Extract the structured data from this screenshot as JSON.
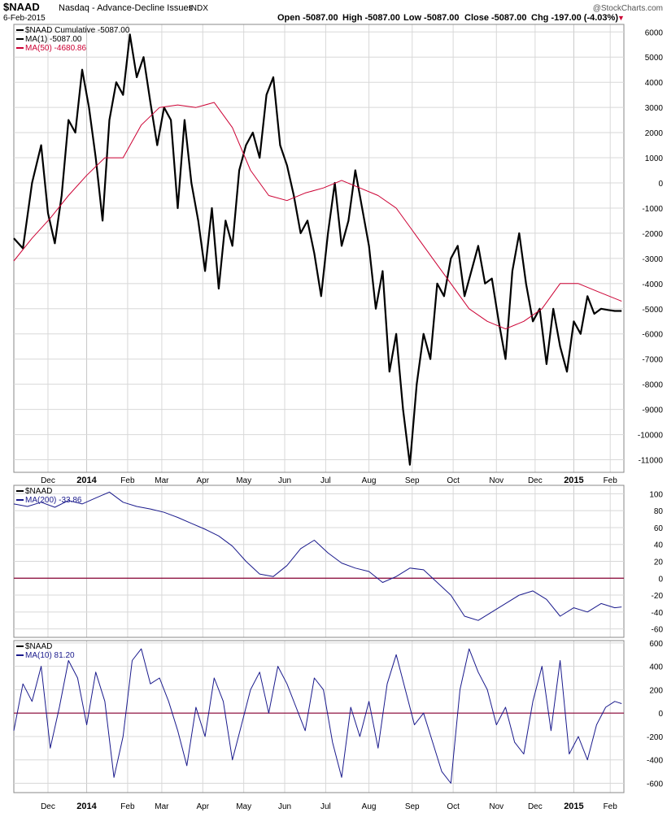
{
  "header": {
    "symbol": "$NAAD",
    "name": "Nasdaq - Advance-Decline Issues",
    "exchange": "INDX",
    "date": "6-Feb-2015",
    "open": "Open -5087.00",
    "high": "High -5087.00",
    "low": "Low -5087.00",
    "close": "Close -5087.00",
    "chg": "Chg -197.00 (-4.03%)",
    "chg_arrow": "▼",
    "watermark": "@StockCharts.com"
  },
  "colors": {
    "price": "#000000",
    "ma50": "#cc0033",
    "indicator": "#1a1a8c",
    "zero_line": "#880033",
    "grid": "#d8d8d8",
    "down": "#cc0033"
  },
  "x_axis": {
    "labels": [
      {
        "text": "Dec",
        "t": 0.075,
        "bold": false
      },
      {
        "text": "2014",
        "t": 0.16,
        "bold": true
      },
      {
        "text": "Feb",
        "t": 0.25,
        "bold": false
      },
      {
        "text": "Mar",
        "t": 0.325,
        "bold": false
      },
      {
        "text": "Apr",
        "t": 0.415,
        "bold": false
      },
      {
        "text": "May",
        "t": 0.505,
        "bold": false
      },
      {
        "text": "Jun",
        "t": 0.595,
        "bold": false
      },
      {
        "text": "Jul",
        "t": 0.685,
        "bold": false
      },
      {
        "text": "Aug",
        "t": 0.78,
        "bold": false
      },
      {
        "text": "Sep",
        "t": 0.875,
        "bold": false
      },
      {
        "text": "Oct",
        "t": 0.965,
        "bold": false
      },
      {
        "text": "Nov",
        "t": 1.06,
        "bold": false
      },
      {
        "text": "Dec",
        "t": 1.145,
        "bold": false
      },
      {
        "text": "2015",
        "t": 1.23,
        "bold": true
      },
      {
        "text": "Feb",
        "t": 1.31,
        "bold": false
      }
    ]
  },
  "chart_data": [
    {
      "type": "line",
      "panel": "main",
      "legend": [
        {
          "label": "$NAAD Cumulative -5087.00",
          "color": "#000000"
        },
        {
          "label": "MA(1) -5087.00",
          "color": "#000000"
        },
        {
          "label": "MA(50) -4680.86",
          "color": "#cc0033"
        }
      ],
      "y_ticks": [
        6000,
        5000,
        4000,
        3000,
        2000,
        1000,
        0,
        -1000,
        -2000,
        -3000,
        -4000,
        -5000,
        -6000,
        -7000,
        -8000,
        -9000,
        -10000,
        -11000
      ],
      "ylim": [
        -11500,
        6300
      ],
      "series": [
        {
          "name": "$NAAD Cumulative",
          "color": "#000000",
          "x": [
            0,
            0.02,
            0.04,
            0.06,
            0.075,
            0.09,
            0.105,
            0.12,
            0.135,
            0.15,
            0.165,
            0.18,
            0.195,
            0.21,
            0.225,
            0.24,
            0.255,
            0.27,
            0.285,
            0.3,
            0.315,
            0.33,
            0.345,
            0.36,
            0.375,
            0.39,
            0.405,
            0.42,
            0.435,
            0.45,
            0.465,
            0.48,
            0.495,
            0.51,
            0.525,
            0.54,
            0.555,
            0.57,
            0.585,
            0.6,
            0.615,
            0.63,
            0.645,
            0.66,
            0.675,
            0.69,
            0.705,
            0.72,
            0.735,
            0.75,
            0.765,
            0.78,
            0.795,
            0.81,
            0.825,
            0.84,
            0.855,
            0.87,
            0.885,
            0.9,
            0.915,
            0.93,
            0.945,
            0.96,
            0.975,
            0.99,
            1.005,
            1.02,
            1.035,
            1.05,
            1.065,
            1.08,
            1.095,
            1.11,
            1.125,
            1.14,
            1.155,
            1.17,
            1.185,
            1.2,
            1.215,
            1.23,
            1.245,
            1.26,
            1.275,
            1.29,
            1.305,
            1.32,
            1.335
          ],
          "values": [
            -2200,
            -2600,
            0,
            1500,
            -1200,
            -2400,
            -500,
            2500,
            2000,
            4500,
            3000,
            1000,
            -1500,
            2500,
            4000,
            3500,
            5900,
            4200,
            5000,
            3200,
            1500,
            3000,
            2500,
            -1000,
            2500,
            0,
            -1500,
            -3500,
            -1000,
            -4200,
            -1500,
            -2500,
            500,
            1500,
            2000,
            1000,
            3500,
            4200,
            1500,
            700,
            -500,
            -2000,
            -1500,
            -2800,
            -4500,
            -2000,
            0,
            -2500,
            -1500,
            500,
            -1000,
            -2500,
            -5000,
            -3500,
            -7500,
            -6000,
            -9000,
            -11200,
            -8000,
            -6000,
            -7000,
            -4000,
            -4500,
            -3000,
            -2500,
            -4500,
            -3500,
            -2500,
            -4000,
            -3800,
            -5500,
            -7000,
            -3500,
            -2000,
            -4000,
            -5500,
            -5000,
            -7200,
            -5000,
            -6500,
            -7500,
            -5500,
            -6000,
            -4500,
            -5200,
            -5000,
            -5050,
            -5087,
            -5087
          ]
        },
        {
          "name": "MA(50)",
          "color": "#cc0033",
          "x": [
            0,
            0.04,
            0.08,
            0.12,
            0.16,
            0.2,
            0.24,
            0.28,
            0.32,
            0.36,
            0.4,
            0.44,
            0.48,
            0.52,
            0.56,
            0.6,
            0.64,
            0.68,
            0.72,
            0.76,
            0.8,
            0.84,
            0.88,
            0.92,
            0.96,
            1.0,
            1.04,
            1.08,
            1.12,
            1.16,
            1.2,
            1.24,
            1.28,
            1.335
          ],
          "values": [
            -3100,
            -2200,
            -1400,
            -500,
            300,
            1000,
            1000,
            2300,
            3000,
            3100,
            3000,
            3200,
            2200,
            500,
            -500,
            -700,
            -400,
            -200,
            100,
            -200,
            -500,
            -1000,
            -2000,
            -3000,
            -4000,
            -5000,
            -5500,
            -5800,
            -5500,
            -5000,
            -4000,
            -4000,
            -4300,
            -4700
          ]
        }
      ]
    },
    {
      "type": "line",
      "panel": "ma200",
      "legend": [
        {
          "label": "$NAAD",
          "color": "#000000"
        },
        {
          "label": "MA(200) -33.86",
          "color": "#1a1a8c"
        }
      ],
      "y_ticks": [
        100,
        80,
        60,
        40,
        20,
        0,
        -20,
        -40,
        -60
      ],
      "ylim": [
        -70,
        110
      ],
      "zero_line": 0,
      "series": [
        {
          "name": "MA(200)",
          "color": "#1a1a8c",
          "x": [
            0,
            0.03,
            0.06,
            0.09,
            0.12,
            0.15,
            0.18,
            0.21,
            0.24,
            0.27,
            0.3,
            0.33,
            0.36,
            0.39,
            0.42,
            0.45,
            0.48,
            0.51,
            0.54,
            0.57,
            0.6,
            0.63,
            0.66,
            0.69,
            0.72,
            0.75,
            0.78,
            0.81,
            0.84,
            0.87,
            0.9,
            0.93,
            0.96,
            0.99,
            1.02,
            1.05,
            1.08,
            1.11,
            1.14,
            1.17,
            1.2,
            1.23,
            1.26,
            1.29,
            1.32,
            1.335
          ],
          "values": [
            88,
            85,
            90,
            84,
            92,
            88,
            95,
            102,
            90,
            85,
            82,
            78,
            72,
            65,
            58,
            50,
            38,
            20,
            5,
            2,
            15,
            35,
            45,
            30,
            18,
            12,
            8,
            -5,
            2,
            12,
            10,
            -5,
            -20,
            -45,
            -50,
            -40,
            -30,
            -20,
            -15,
            -25,
            -45,
            -35,
            -40,
            -30,
            -35,
            -34
          ]
        }
      ]
    },
    {
      "type": "line",
      "panel": "ma10",
      "legend": [
        {
          "label": "$NAAD",
          "color": "#000000"
        },
        {
          "label": "MA(10) 81.20",
          "color": "#1a1a8c"
        }
      ],
      "y_ticks": [
        600,
        400,
        200,
        0,
        -200,
        -400,
        -600
      ],
      "ylim": [
        -680,
        620
      ],
      "zero_line": 0,
      "series": [
        {
          "name": "MA(10)",
          "color": "#1a1a8c",
          "x": [
            0,
            0.02,
            0.04,
            0.06,
            0.08,
            0.1,
            0.12,
            0.14,
            0.16,
            0.18,
            0.2,
            0.22,
            0.24,
            0.26,
            0.28,
            0.3,
            0.32,
            0.34,
            0.36,
            0.38,
            0.4,
            0.42,
            0.44,
            0.46,
            0.48,
            0.5,
            0.52,
            0.54,
            0.56,
            0.58,
            0.6,
            0.62,
            0.64,
            0.66,
            0.68,
            0.7,
            0.72,
            0.74,
            0.76,
            0.78,
            0.8,
            0.82,
            0.84,
            0.86,
            0.88,
            0.9,
            0.92,
            0.94,
            0.96,
            0.98,
            1.0,
            1.02,
            1.04,
            1.06,
            1.08,
            1.1,
            1.12,
            1.14,
            1.16,
            1.18,
            1.2,
            1.22,
            1.24,
            1.26,
            1.28,
            1.3,
            1.32,
            1.335
          ],
          "values": [
            -150,
            250,
            100,
            400,
            -300,
            50,
            450,
            300,
            -100,
            350,
            100,
            -550,
            -200,
            450,
            550,
            250,
            300,
            100,
            -150,
            -450,
            50,
            -200,
            300,
            100,
            -400,
            -100,
            200,
            350,
            0,
            400,
            250,
            50,
            -150,
            300,
            200,
            -250,
            -550,
            50,
            -200,
            100,
            -300,
            250,
            500,
            200,
            -100,
            0,
            -250,
            -500,
            -600,
            200,
            550,
            350,
            200,
            -100,
            50,
            -250,
            -350,
            100,
            400,
            -150,
            450,
            -350,
            -200,
            -400,
            -100,
            50,
            100,
            81
          ]
        }
      ]
    }
  ]
}
